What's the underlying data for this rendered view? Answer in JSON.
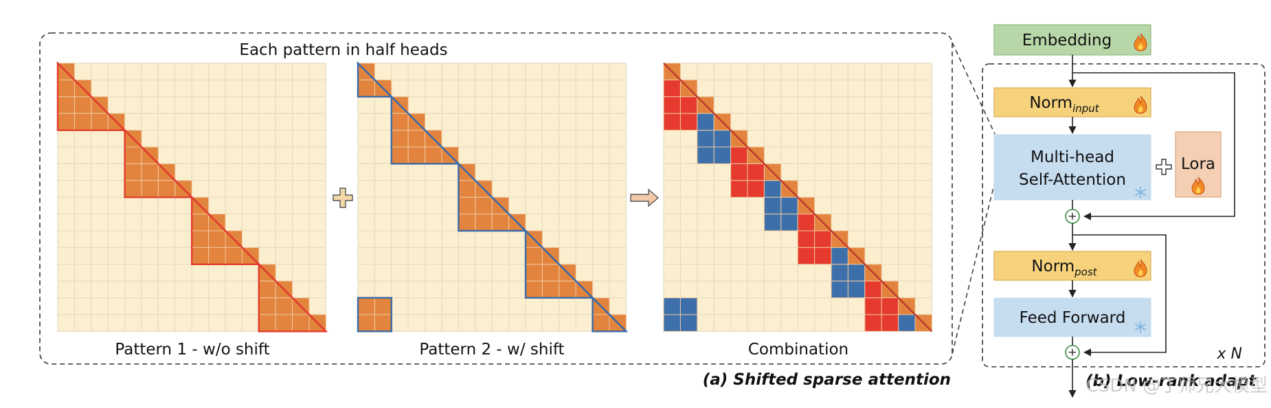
{
  "panel_a": {
    "header": "Each pattern in half heads",
    "caption": "(a) Shifted sparse attention",
    "patterns": [
      {
        "label": "Pattern 1 - w/o shift",
        "grid_size": 16,
        "block_size": 4,
        "shift": 0,
        "block_color": "#e2843d",
        "outline_color": "#e23b2c"
      },
      {
        "label": "Pattern 2 - w/ shift",
        "grid_size": 16,
        "block_size": 4,
        "shift": 2,
        "block_color": "#e2843d",
        "outline_color": "#3b6aa8"
      },
      {
        "label": "Combination",
        "grid_size": 16,
        "block_size": 4,
        "combined": true
      }
    ],
    "operators": {
      "plus": "+",
      "arrow": "⇨"
    }
  },
  "panel_b": {
    "caption": "(b) Low-rank adapt",
    "repeat": "x N",
    "blocks": {
      "embedding": {
        "label": "Embedding",
        "color": "#b7d7a8",
        "trainable": true
      },
      "norm_input": {
        "label": "Norm",
        "subscript": "input",
        "color": "#f7d27d",
        "trainable": true
      },
      "attention": {
        "line1": "Multi-head",
        "line2": "Self-Attention",
        "color": "#c6dcef",
        "frozen": true
      },
      "lora": {
        "label": "Lora",
        "color": "#f4cfb4",
        "trainable": true
      },
      "norm_post": {
        "label": "Norm",
        "subscript": "post",
        "color": "#f7d27d",
        "trainable": true
      },
      "feed_forward": {
        "label": "Feed Forward",
        "color": "#c6dcef",
        "frozen": true
      }
    },
    "icons": {
      "trainable": "fire-icon",
      "frozen": "snowflake-icon"
    }
  },
  "watermark": "CSDN @丁师兄大模型",
  "colors": {
    "cell_bg": "#fcefd0",
    "cell_border": "#e6dcc4",
    "orange": "#e2843d",
    "red": "#e53a2d",
    "blue": "#3d70aa",
    "dashed": "#333333"
  }
}
